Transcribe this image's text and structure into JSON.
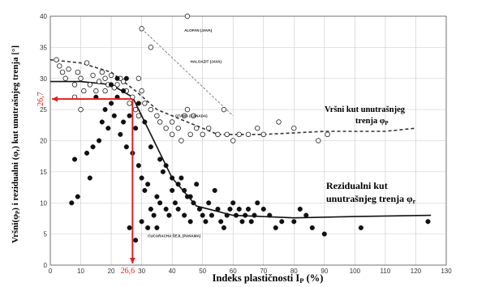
{
  "chart_data": {
    "type": "scatter",
    "xlabel": "Indeks plastičnosti I",
    "xlabel_sub": "P",
    "xlabel_unit": " (%)",
    "ylabel": "Vršni(φ",
    "ylabel_rest": ") i rezidualni (φ",
    "ylabel_rest2": ") kut unutrašnjeg trenja [°]",
    "ylabel_sub_p": "P",
    "ylabel_sub_r": "r",
    "xlim": [
      0,
      130
    ],
    "ylim": [
      0,
      40
    ],
    "x_ticks": [
      "0",
      "10",
      "20",
      "30",
      "40",
      "50",
      "60",
      "70",
      "80",
      "90",
      "100",
      "110",
      "120",
      "130"
    ],
    "y_ticks": [
      "0",
      "5",
      "10",
      "15",
      "20",
      "25",
      "30",
      "35",
      "40"
    ],
    "grid": true,
    "peak_label_line1": "Vršni kut unutrašnjeg",
    "peak_label_line2": "trenja φ",
    "peak_label_sub": "P",
    "resid_label_line1": "Rezidualni kut",
    "resid_label_line2": "unutrašnjeg trenja φ",
    "resid_label_sub": "r",
    "marker_y_value": "26,7",
    "marker_x_value": "26,6",
    "marker_point": [
      27,
      26.7
    ],
    "annotations": [
      {
        "text": "ALOFAN (JAVA)",
        "x": 44,
        "y": 37.5
      },
      {
        "text": "HALOAZIT (JAVA)",
        "x": 46,
        "y": 32.5
      },
      {
        "text": "OTAWA (CANADA)",
        "x": 41,
        "y": 23.8
      },
      {
        "text": "CUCARACHA ŠEJL (PANAMA)",
        "x": 32,
        "y": 4.5
      }
    ],
    "peak_series": {
      "name": "peak",
      "points": [
        [
          2,
          33
        ],
        [
          3,
          32
        ],
        [
          4,
          31
        ],
        [
          5,
          30
        ],
        [
          6,
          31.5
        ],
        [
          8,
          29
        ],
        [
          9,
          31
        ],
        [
          10,
          30
        ],
        [
          11,
          28
        ],
        [
          12,
          32.5
        ],
        [
          13,
          29
        ],
        [
          14,
          30.5
        ],
        [
          15,
          28
        ],
        [
          16,
          29.5
        ],
        [
          17,
          31
        ],
        [
          18,
          30
        ],
        [
          19,
          29
        ],
        [
          20,
          30.5
        ],
        [
          21,
          28.5
        ],
        [
          22,
          29
        ],
        [
          23,
          30
        ],
        [
          24,
          29.5
        ],
        [
          25,
          28
        ],
        [
          26,
          26
        ],
        [
          27,
          27
        ],
        [
          28,
          25
        ],
        [
          29,
          24
        ],
        [
          30,
          28
        ],
        [
          31,
          26
        ],
        [
          33,
          25
        ],
        [
          35,
          24
        ],
        [
          36,
          23
        ],
        [
          38,
          22
        ],
        [
          40,
          23
        ],
        [
          42,
          22
        ],
        [
          44,
          24
        ],
        [
          45,
          25
        ],
        [
          46,
          21
        ],
        [
          48,
          22
        ],
        [
          50,
          21
        ],
        [
          52,
          22
        ],
        [
          55,
          21
        ],
        [
          58,
          21
        ],
        [
          60,
          20
        ],
        [
          62,
          21
        ],
        [
          65,
          21
        ],
        [
          68,
          22
        ],
        [
          70,
          21
        ],
        [
          75,
          23
        ],
        [
          80,
          22
        ],
        [
          88,
          20
        ],
        [
          91,
          21
        ],
        [
          30,
          38
        ],
        [
          33,
          35
        ],
        [
          45,
          40
        ],
        [
          47,
          24
        ],
        [
          57,
          25
        ],
        [
          8,
          27
        ],
        [
          10,
          25
        ],
        [
          18,
          28
        ],
        [
          29,
          30
        ],
        [
          40,
          21
        ],
        [
          43,
          20
        ]
      ]
    },
    "resid_series": {
      "name": "residual",
      "points": [
        [
          7,
          10
        ],
        [
          8,
          17
        ],
        [
          9,
          11
        ],
        [
          12,
          18
        ],
        [
          13,
          14
        ],
        [
          14,
          19
        ],
        [
          15,
          27
        ],
        [
          16,
          20
        ],
        [
          17,
          23
        ],
        [
          18,
          25
        ],
        [
          19,
          22
        ],
        [
          20,
          26
        ],
        [
          21,
          24
        ],
        [
          22,
          27
        ],
        [
          23,
          21
        ],
        [
          24,
          23
        ],
        [
          25,
          19
        ],
        [
          26,
          24
        ],
        [
          27,
          18
        ],
        [
          28,
          22
        ],
        [
          29,
          16
        ],
        [
          30,
          14
        ],
        [
          31,
          12
        ],
        [
          32,
          13
        ],
        [
          33,
          9
        ],
        [
          34,
          8
        ],
        [
          35,
          11
        ],
        [
          36,
          10
        ],
        [
          37,
          15
        ],
        [
          38,
          9
        ],
        [
          39,
          8
        ],
        [
          40,
          12
        ],
        [
          41,
          10
        ],
        [
          42,
          9
        ],
        [
          43,
          14
        ],
        [
          44,
          8
        ],
        [
          45,
          11
        ],
        [
          46,
          7
        ],
        [
          47,
          10
        ],
        [
          48,
          13
        ],
        [
          49,
          9
        ],
        [
          50,
          8
        ],
        [
          51,
          7
        ],
        [
          52,
          10
        ],
        [
          53,
          8
        ],
        [
          54,
          12
        ],
        [
          55,
          9
        ],
        [
          56,
          7
        ],
        [
          57,
          6
        ],
        [
          58,
          8
        ],
        [
          59,
          9
        ],
        [
          60,
          10
        ],
        [
          61,
          8
        ],
        [
          62,
          9
        ],
        [
          63,
          7
        ],
        [
          64,
          8
        ],
        [
          65,
          9
        ],
        [
          66,
          7
        ],
        [
          67,
          8
        ],
        [
          68,
          10
        ],
        [
          70,
          9
        ],
        [
          72,
          8
        ],
        [
          74,
          6
        ],
        [
          76,
          7
        ],
        [
          80,
          7
        ],
        [
          82,
          9
        ],
        [
          84,
          8
        ],
        [
          86,
          6
        ],
        [
          90,
          5
        ],
        [
          102,
          6
        ],
        [
          124,
          7
        ],
        [
          26,
          6
        ],
        [
          28,
          4
        ],
        [
          30,
          7
        ],
        [
          32,
          6
        ],
        [
          35,
          6
        ],
        [
          29,
          26
        ],
        [
          31,
          23
        ],
        [
          33,
          19
        ],
        [
          36,
          17
        ],
        [
          38,
          16
        ],
        [
          40,
          14
        ],
        [
          42,
          13
        ],
        [
          44,
          12
        ],
        [
          46,
          11
        ],
        [
          25,
          30
        ],
        [
          22,
          30
        ],
        [
          20,
          29
        ],
        [
          24,
          28
        ]
      ]
    },
    "peak_trend": [
      [
        0,
        33
      ],
      [
        10,
        32.5
      ],
      [
        20,
        31
      ],
      [
        28,
        28
      ],
      [
        35,
        25
      ],
      [
        45,
        23
      ],
      [
        55,
        21
      ],
      [
        70,
        21
      ],
      [
        90,
        21.5
      ],
      [
        110,
        21.5
      ],
      [
        120,
        22
      ]
    ],
    "resid_trend": [
      [
        0,
        29.5
      ],
      [
        10,
        29.5
      ],
      [
        20,
        29
      ],
      [
        27,
        27
      ],
      [
        32,
        22
      ],
      [
        40,
        14
      ],
      [
        48,
        9.5
      ],
      [
        60,
        8
      ],
      [
        80,
        7.6
      ],
      [
        100,
        7.8
      ],
      [
        125,
        8
      ]
    ],
    "dash_line_alofan": [
      [
        30,
        38
      ],
      [
        60,
        24
      ]
    ]
  }
}
